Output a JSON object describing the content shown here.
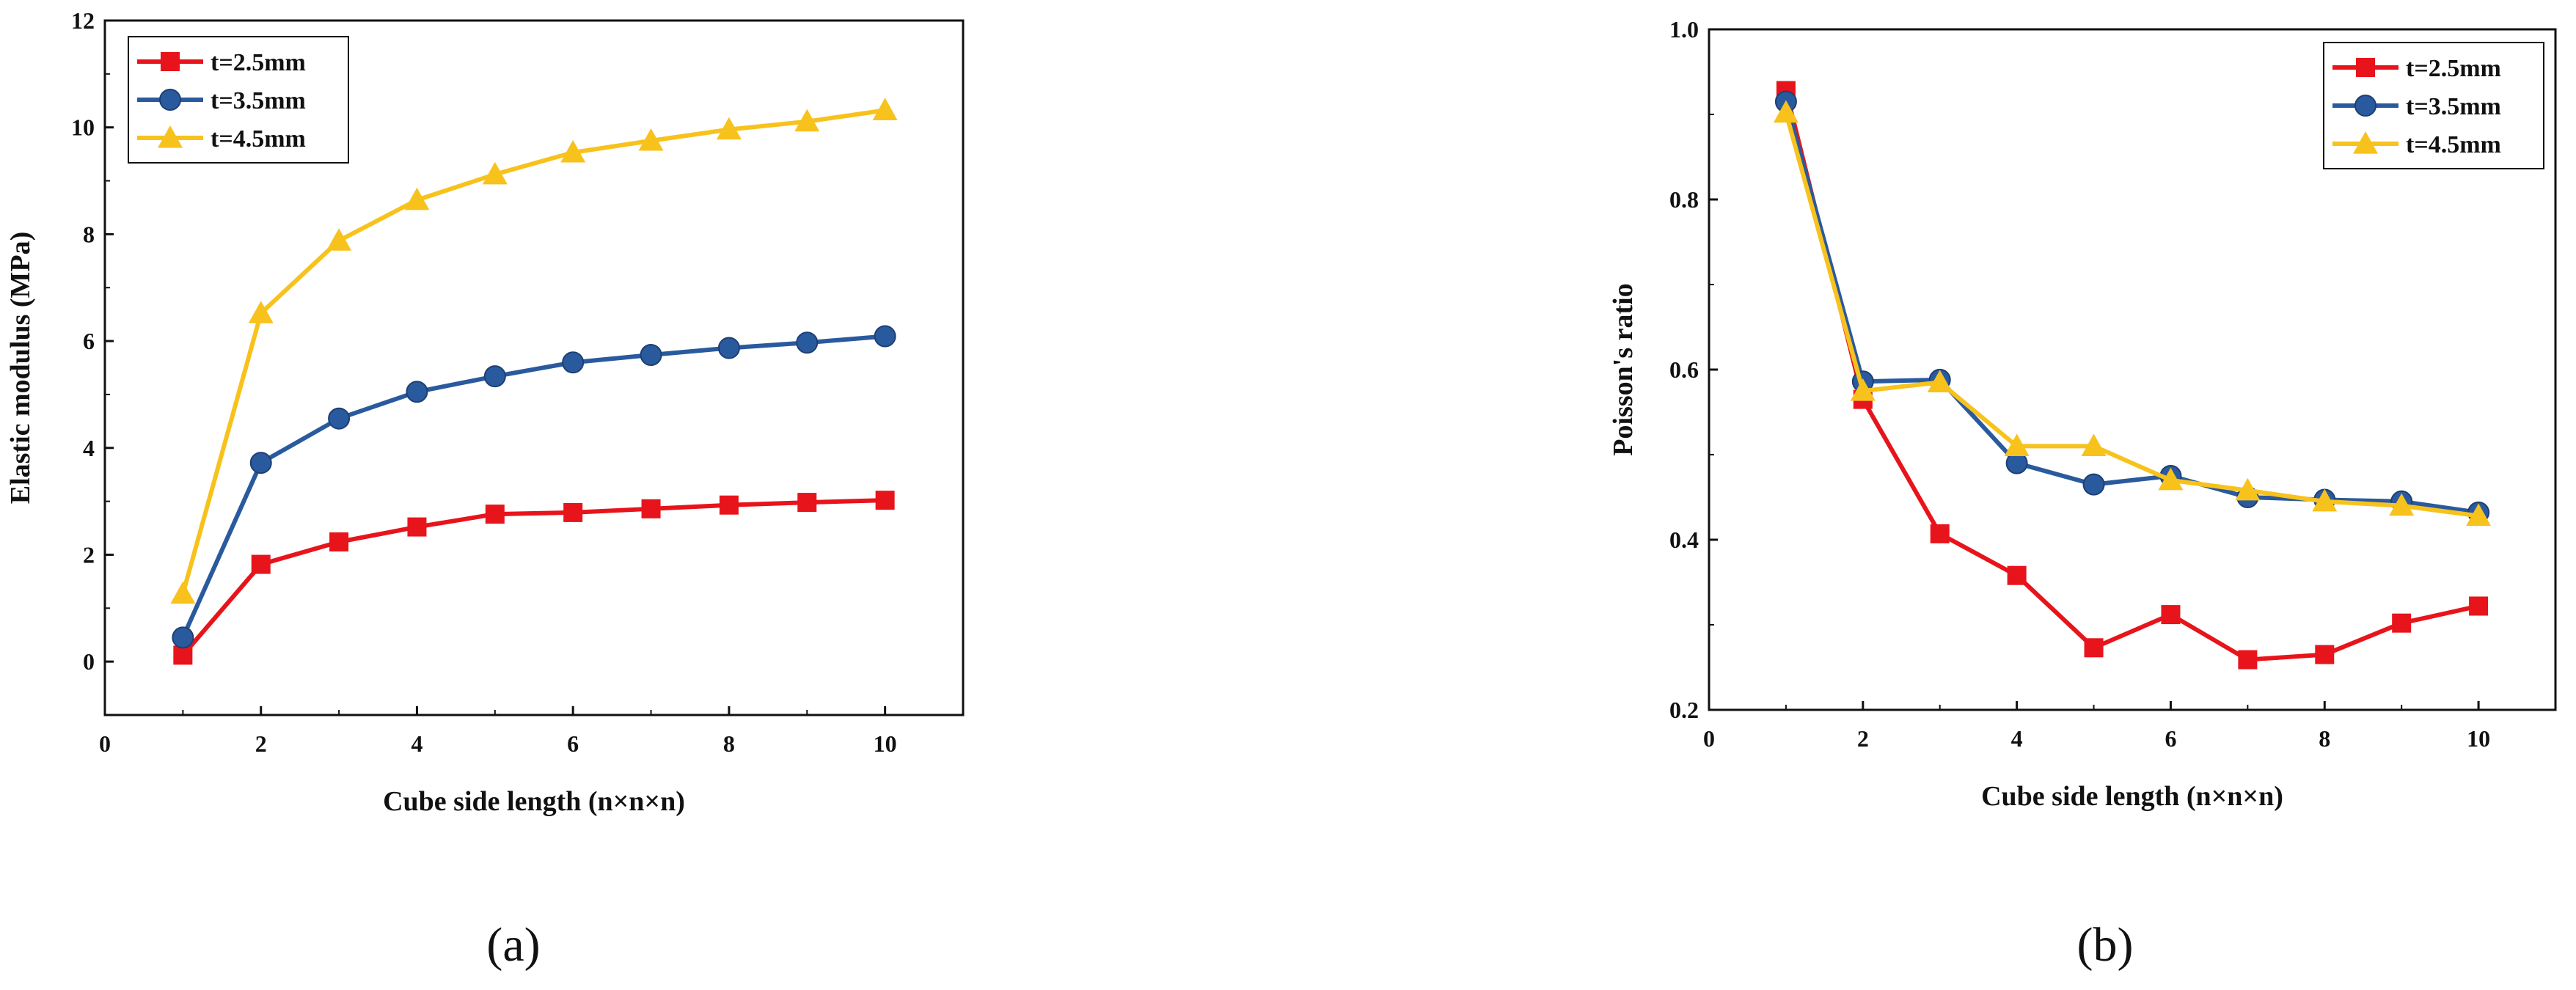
{
  "chart_data": [
    {
      "type": "line",
      "panel_label": "(a)",
      "xlabel": "Cube side length (n×n×n)",
      "ylabel": "Elastic modulus (MPa)",
      "xlim": [
        0,
        11
      ],
      "ylim": [
        -1,
        12
      ],
      "xticks": [
        0,
        2,
        4,
        6,
        8,
        10
      ],
      "yticks": [
        0,
        2,
        4,
        6,
        8,
        10,
        12
      ],
      "legend_position": "top-left",
      "x": [
        1,
        2,
        3,
        4,
        5,
        6,
        7,
        8,
        9,
        10
      ],
      "series": [
        {
          "name": "t=2.5mm",
          "color": "#e8141b",
          "marker": "square",
          "values": [
            0.12,
            1.82,
            2.24,
            2.52,
            2.76,
            2.79,
            2.86,
            2.93,
            2.98,
            3.02
          ]
        },
        {
          "name": "t=3.5mm",
          "color": "#2a5a9e",
          "marker": "circle",
          "values": [
            0.45,
            3.72,
            4.55,
            5.05,
            5.34,
            5.6,
            5.74,
            5.87,
            5.97,
            6.09
          ]
        },
        {
          "name": "t=4.5mm",
          "color": "#f8c21d",
          "marker": "triangle",
          "values": [
            1.27,
            6.52,
            7.88,
            8.64,
            9.12,
            9.53,
            9.75,
            9.96,
            10.11,
            10.32
          ]
        }
      ]
    },
    {
      "type": "line",
      "panel_label": "(b)",
      "xlabel": "Cube side length (n×n×n)",
      "ylabel": "Poisson's ratio",
      "xlim": [
        0,
        11
      ],
      "ylim": [
        0.2,
        1.0
      ],
      "xticks": [
        0,
        2,
        4,
        6,
        8,
        10
      ],
      "yticks": [
        0.2,
        0.4,
        0.6,
        0.8,
        1.0
      ],
      "ytick_labels": [
        "0.2",
        "0.4",
        "0.6",
        "0.8",
        "1.0"
      ],
      "legend_position": "top-right",
      "x": [
        1,
        2,
        3,
        4,
        5,
        6,
        7,
        8,
        9,
        10
      ],
      "series": [
        {
          "name": "t=2.5mm",
          "color": "#e8141b",
          "marker": "square",
          "values": [
            0.928,
            0.565,
            0.407,
            0.358,
            0.273,
            0.312,
            0.259,
            0.265,
            0.302,
            0.322
          ]
        },
        {
          "name": "t=3.5mm",
          "color": "#2a5a9e",
          "marker": "circle",
          "values": [
            0.915,
            0.586,
            0.588,
            0.49,
            0.465,
            0.475,
            0.45,
            0.447,
            0.445,
            0.432
          ]
        },
        {
          "name": "t=4.5mm",
          "color": "#f8c21d",
          "marker": "triangle",
          "values": [
            0.902,
            0.575,
            0.585,
            0.51,
            0.51,
            0.47,
            0.458,
            0.445,
            0.44,
            0.428
          ]
        }
      ]
    }
  ]
}
